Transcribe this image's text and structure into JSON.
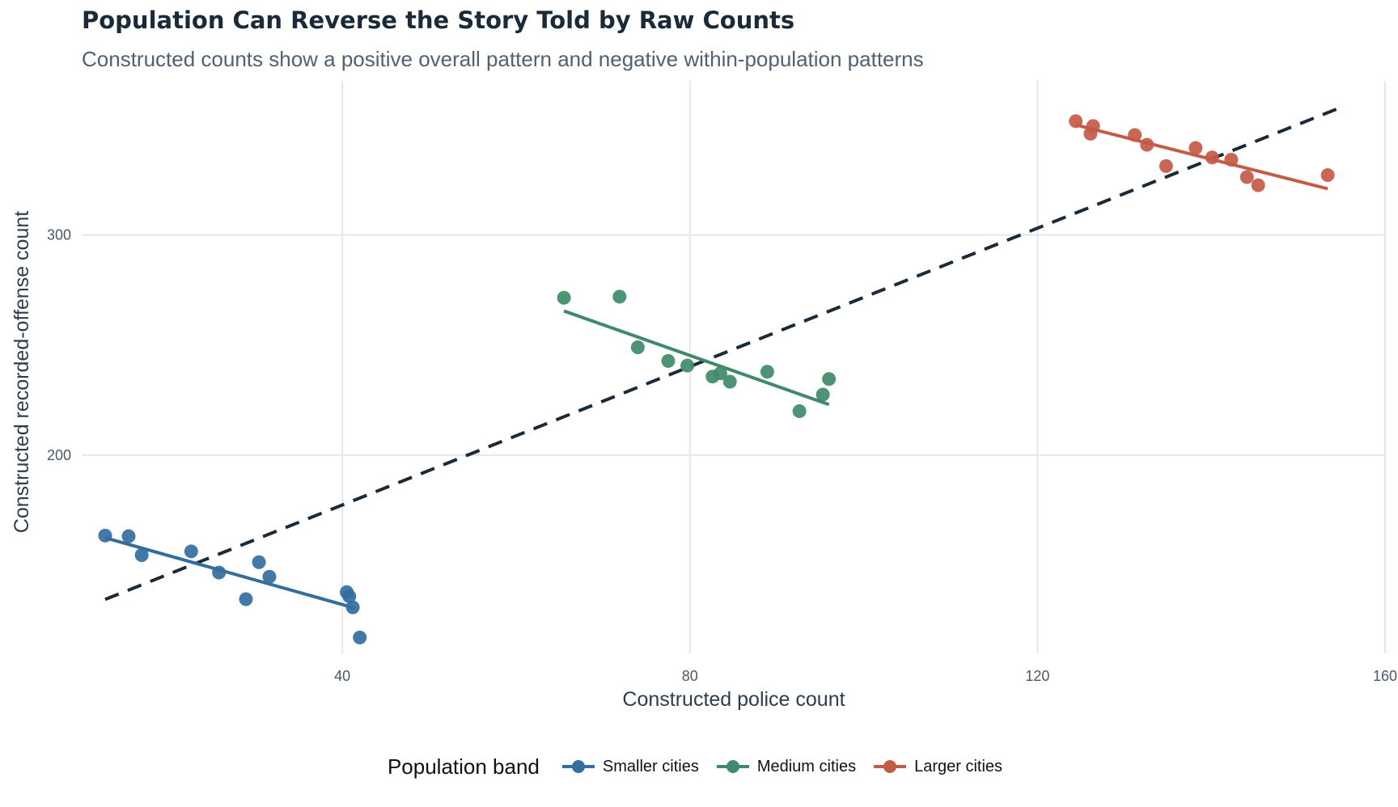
{
  "chart_data": {
    "type": "scatter",
    "title": "Population Can Reverse the Story Told by Raw Counts",
    "subtitle": "Constructed counts show a positive overall pattern and negative within-population patterns",
    "xlabel": "Constructed police count",
    "ylabel": "Constructed recorded-offense count",
    "xlim": [
      10,
      160
    ],
    "ylim": [
      110,
      370
    ],
    "x_ticks": [
      40,
      80,
      120,
      160
    ],
    "y_ticks": [
      200,
      300
    ],
    "grid": true,
    "legend": {
      "title": "Population band",
      "position": "bottom"
    },
    "overall_trend": {
      "style": "dashed",
      "color": "#1b2a38",
      "x": [
        12.7,
        154.5
      ],
      "y": [
        134.5,
        357.3
      ]
    },
    "series": [
      {
        "name": "Smaller cities",
        "color": "#336e9e",
        "points": [
          {
            "x": 12.7,
            "y": 163.5
          },
          {
            "x": 15.4,
            "y": 163.2
          },
          {
            "x": 16.9,
            "y": 154.6
          },
          {
            "x": 22.6,
            "y": 156.3
          },
          {
            "x": 25.8,
            "y": 146.7
          },
          {
            "x": 28.9,
            "y": 134.6
          },
          {
            "x": 30.4,
            "y": 151.4
          },
          {
            "x": 31.6,
            "y": 144.8
          },
          {
            "x": 40.5,
            "y": 137.8
          },
          {
            "x": 40.8,
            "y": 135.9
          },
          {
            "x": 41.2,
            "y": 130.9
          },
          {
            "x": 42.0,
            "y": 117.2
          }
        ],
        "trend": {
          "x": [
            12.7,
            41.5
          ],
          "y": [
            162.5,
            130.5
          ]
        }
      },
      {
        "name": "Medium cities",
        "color": "#3e8a6a",
        "points": [
          {
            "x": 65.5,
            "y": 271.5
          },
          {
            "x": 71.9,
            "y": 272.0
          },
          {
            "x": 74.0,
            "y": 249.0
          },
          {
            "x": 77.5,
            "y": 242.8
          },
          {
            "x": 79.7,
            "y": 240.7
          },
          {
            "x": 82.6,
            "y": 235.7
          },
          {
            "x": 83.5,
            "y": 237.2
          },
          {
            "x": 84.6,
            "y": 233.4
          },
          {
            "x": 88.9,
            "y": 237.9
          },
          {
            "x": 92.6,
            "y": 220.0
          },
          {
            "x": 95.3,
            "y": 227.5
          },
          {
            "x": 96.0,
            "y": 234.6
          }
        ],
        "trend": {
          "x": [
            65.5,
            96.0
          ],
          "y": [
            265.5,
            223.0
          ]
        }
      },
      {
        "name": "Larger cities",
        "color": "#c45a48",
        "points": [
          {
            "x": 124.4,
            "y": 351.7
          },
          {
            "x": 126.1,
            "y": 346.0
          },
          {
            "x": 126.4,
            "y": 349.5
          },
          {
            "x": 131.2,
            "y": 345.4
          },
          {
            "x": 132.6,
            "y": 341.0
          },
          {
            "x": 134.8,
            "y": 331.3
          },
          {
            "x": 138.2,
            "y": 339.5
          },
          {
            "x": 140.1,
            "y": 335.2
          },
          {
            "x": 142.3,
            "y": 334.2
          },
          {
            "x": 144.1,
            "y": 326.3
          },
          {
            "x": 145.4,
            "y": 322.6
          },
          {
            "x": 153.4,
            "y": 327.2
          }
        ],
        "trend": {
          "x": [
            124.4,
            153.4
          ],
          "y": [
            350.0,
            321.0
          ]
        }
      }
    ]
  }
}
